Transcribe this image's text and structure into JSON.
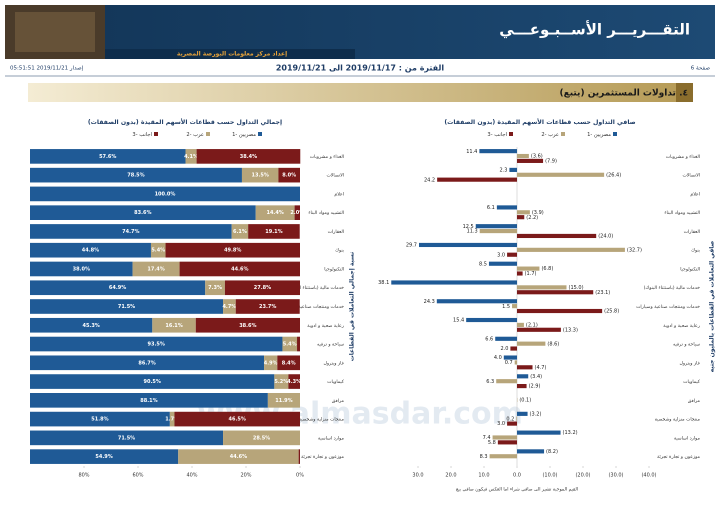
{
  "header": {
    "title": "التقـــريـــر الأســبـوعـــي",
    "subtitle": "إعداد مركز معلومات البورصة المصرية",
    "page": "صفحة 6",
    "period": "الفترة من : 2019/11/17 الى 2019/11/21",
    "issued": "إصدار 2019/11/21 05:51:51",
    "section": "٤. تداولات المستثمرين (يتبع)",
    "watermark": "www.almasdar.com"
  },
  "chart_data": [
    {
      "type": "bar",
      "stacked": true,
      "title": "إجمالي التداول حسب قطاعات الأسهم المقيدة (بدون الصفقات)",
      "ylabel": "نسبة إجمالي التعاملات في القطاعات",
      "categories": [
        "الغذاء و مشروبات",
        "الاتصالات",
        "اعلام",
        "التشييد ومواد البناء",
        "العقارات",
        "بنوك",
        "التكنولوجيا",
        "خدمات مالية (باستثناء البنوك)",
        "خدمات ومنتجات صناعية وسيارات",
        "رعاية صحية و ادوية",
        "سياحة و ترفيه",
        "غاز وبترول",
        "كيماويات",
        "مرافق",
        "منتجات منزلية وشخصية",
        "موارد اساسية",
        "موزعون و تجارة تجزئة"
      ],
      "series": [
        {
          "name": "مصريين -1",
          "color": "#1f5a96",
          "values": [
            57.6,
            78.5,
            100.0,
            83.6,
            74.7,
            44.8,
            38.0,
            64.9,
            71.5,
            45.3,
            93.5,
            86.7,
            90.5,
            88.1,
            51.8,
            71.5,
            54.9
          ],
          "value_labels": [
            "57.6%",
            "78.5%",
            "100.0%",
            "83.6%",
            "74.7%",
            "44.8%",
            "38.0%",
            "64.9%",
            "71.5%",
            "45.3%",
            "93.5%",
            "86.7%",
            "90.5%",
            "88.1%",
            "51.8%",
            "71.5%",
            "54.9%"
          ]
        },
        {
          "name": "عرب -2",
          "color": "#b7a57a",
          "values": [
            4.1,
            13.5,
            0,
            14.4,
            6.1,
            5.4,
            17.4,
            7.3,
            4.7,
            16.1,
            5.4,
            4.9,
            5.2,
            11.9,
            1.7,
            28.5,
            44.6
          ],
          "value_labels": [
            "4.1%",
            "13.5%",
            null,
            "14.4%",
            "6.1%",
            "5.4%",
            "17.4%",
            "7.3%",
            "4.7%",
            "16.1%",
            "5.4%",
            "4.9%",
            "5.2%",
            "11.9%",
            "1.7%",
            "28.5%",
            "44.6%"
          ]
        },
        {
          "name": "اجانب -3",
          "color": "#7b1a1a",
          "values": [
            38.4,
            8.0,
            0,
            2.0,
            19.1,
            49.8,
            44.6,
            27.8,
            23.7,
            38.6,
            1.1,
            8.4,
            4.3,
            0,
            46.5,
            0,
            0.5
          ],
          "value_labels": [
            "38.4%",
            "8.0%",
            null,
            "2.0%",
            "19.1%",
            "49.8%",
            "44.6%",
            "27.8%",
            "23.7%",
            "38.6%",
            null,
            "8.4%",
            "4.3%",
            null,
            "46.5%",
            null,
            null
          ]
        }
      ],
      "xlim": [
        100,
        0
      ],
      "xticks": [
        {
          "value": 80,
          "label": "80%"
        },
        {
          "value": 60,
          "label": "60%"
        },
        {
          "value": 40,
          "label": "40%"
        },
        {
          "value": 20,
          "label": "20%"
        },
        {
          "value": 0,
          "label": "0%"
        }
      ]
    },
    {
      "type": "bar",
      "stacked": false,
      "title": "صافي التداول حسب قطاعات الأسهم المقيدة (بدون الصفقات)",
      "ylabel": "صافي التعاملات في القطاعات بالمليون جنيه",
      "note": "القيم الموجبة تشير الى صافي شراء اما العكس فيكون صافي بيع",
      "categories": [
        "الغذاء و مشروبات",
        "الاتصالات",
        "اعلام",
        "التشييد ومواد البناء",
        "العقارات",
        "بنوك",
        "التكنولوجيا",
        "خدمات مالية (باستثناء البنوك)",
        "خدمات ومنتجات صناعية وسيارات",
        "رعاية صحية و ادوية",
        "سياحة و ترفيه",
        "غاز وبترول",
        "كيماويات",
        "مرافق",
        "منتجات منزلية وشخصية",
        "موارد اساسية",
        "موزعون و تجارة تجزئة"
      ],
      "series": [
        {
          "name": "مصريين -1",
          "color": "#1f5a96",
          "values": [
            11.4,
            2.3,
            null,
            6.1,
            12.5,
            29.7,
            8.5,
            38.1,
            24.3,
            15.4,
            6.6,
            4.0,
            -3.4,
            null,
            -3.2,
            -13.2,
            -8.2
          ],
          "value_labels": [
            "11.4",
            "2.3",
            null,
            "6.1",
            "12.5",
            "29.7",
            "8.5",
            "38.1",
            "24.3",
            "15.4",
            "6.6",
            "4.0",
            "(3.4)",
            null,
            "(3.2)",
            "(13.2)",
            "(8.2)"
          ]
        },
        {
          "name": "عرب -2",
          "color": "#b7a57a",
          "values": [
            -3.6,
            -26.4,
            null,
            -3.9,
            11.3,
            -32.7,
            -6.8,
            -15.0,
            1.5,
            -2.1,
            -8.6,
            0.7,
            6.3,
            -0.1,
            0.2,
            7.4,
            8.3
          ],
          "value_labels": [
            "(3.6)",
            "(26.4)",
            null,
            "(3.9)",
            "11.3",
            "(32.7)",
            "(6.8)",
            "(15.0)",
            "1.5",
            "(2.1)",
            "(8.6)",
            "0.7",
            "6.3",
            "(0.1)",
            "0.2",
            "7.4",
            "8.3"
          ]
        },
        {
          "name": "اجانب -3",
          "color": "#7b1a1a",
          "values": [
            -7.9,
            24.2,
            null,
            -2.2,
            -24.0,
            3.0,
            -1.7,
            -23.1,
            -25.8,
            -13.3,
            2.0,
            -4.7,
            -2.9,
            null,
            3.0,
            5.8,
            null
          ],
          "value_labels": [
            "(7.9)",
            "24.2",
            null,
            "(2.2)",
            "(24.0)",
            "3.0",
            "(1.7)",
            "(23.1)",
            "(25.8)",
            "(13.3)",
            "2.0",
            "(4.7)",
            "(2.9)",
            null,
            "3.0",
            "5.8",
            null
          ]
        }
      ],
      "xlim": [
        40,
        -40
      ],
      "xticks": [
        {
          "value": 30,
          "label": "30.0"
        },
        {
          "value": 20,
          "label": "20.0"
        },
        {
          "value": 10,
          "label": "10.0"
        },
        {
          "value": 0,
          "label": "0.0"
        },
        {
          "value": -10,
          "label": "(10.0)"
        },
        {
          "value": -20,
          "label": "(20.0)"
        },
        {
          "value": -30,
          "label": "(30.0)"
        },
        {
          "value": -40,
          "label": "(40.0)"
        }
      ]
    }
  ]
}
